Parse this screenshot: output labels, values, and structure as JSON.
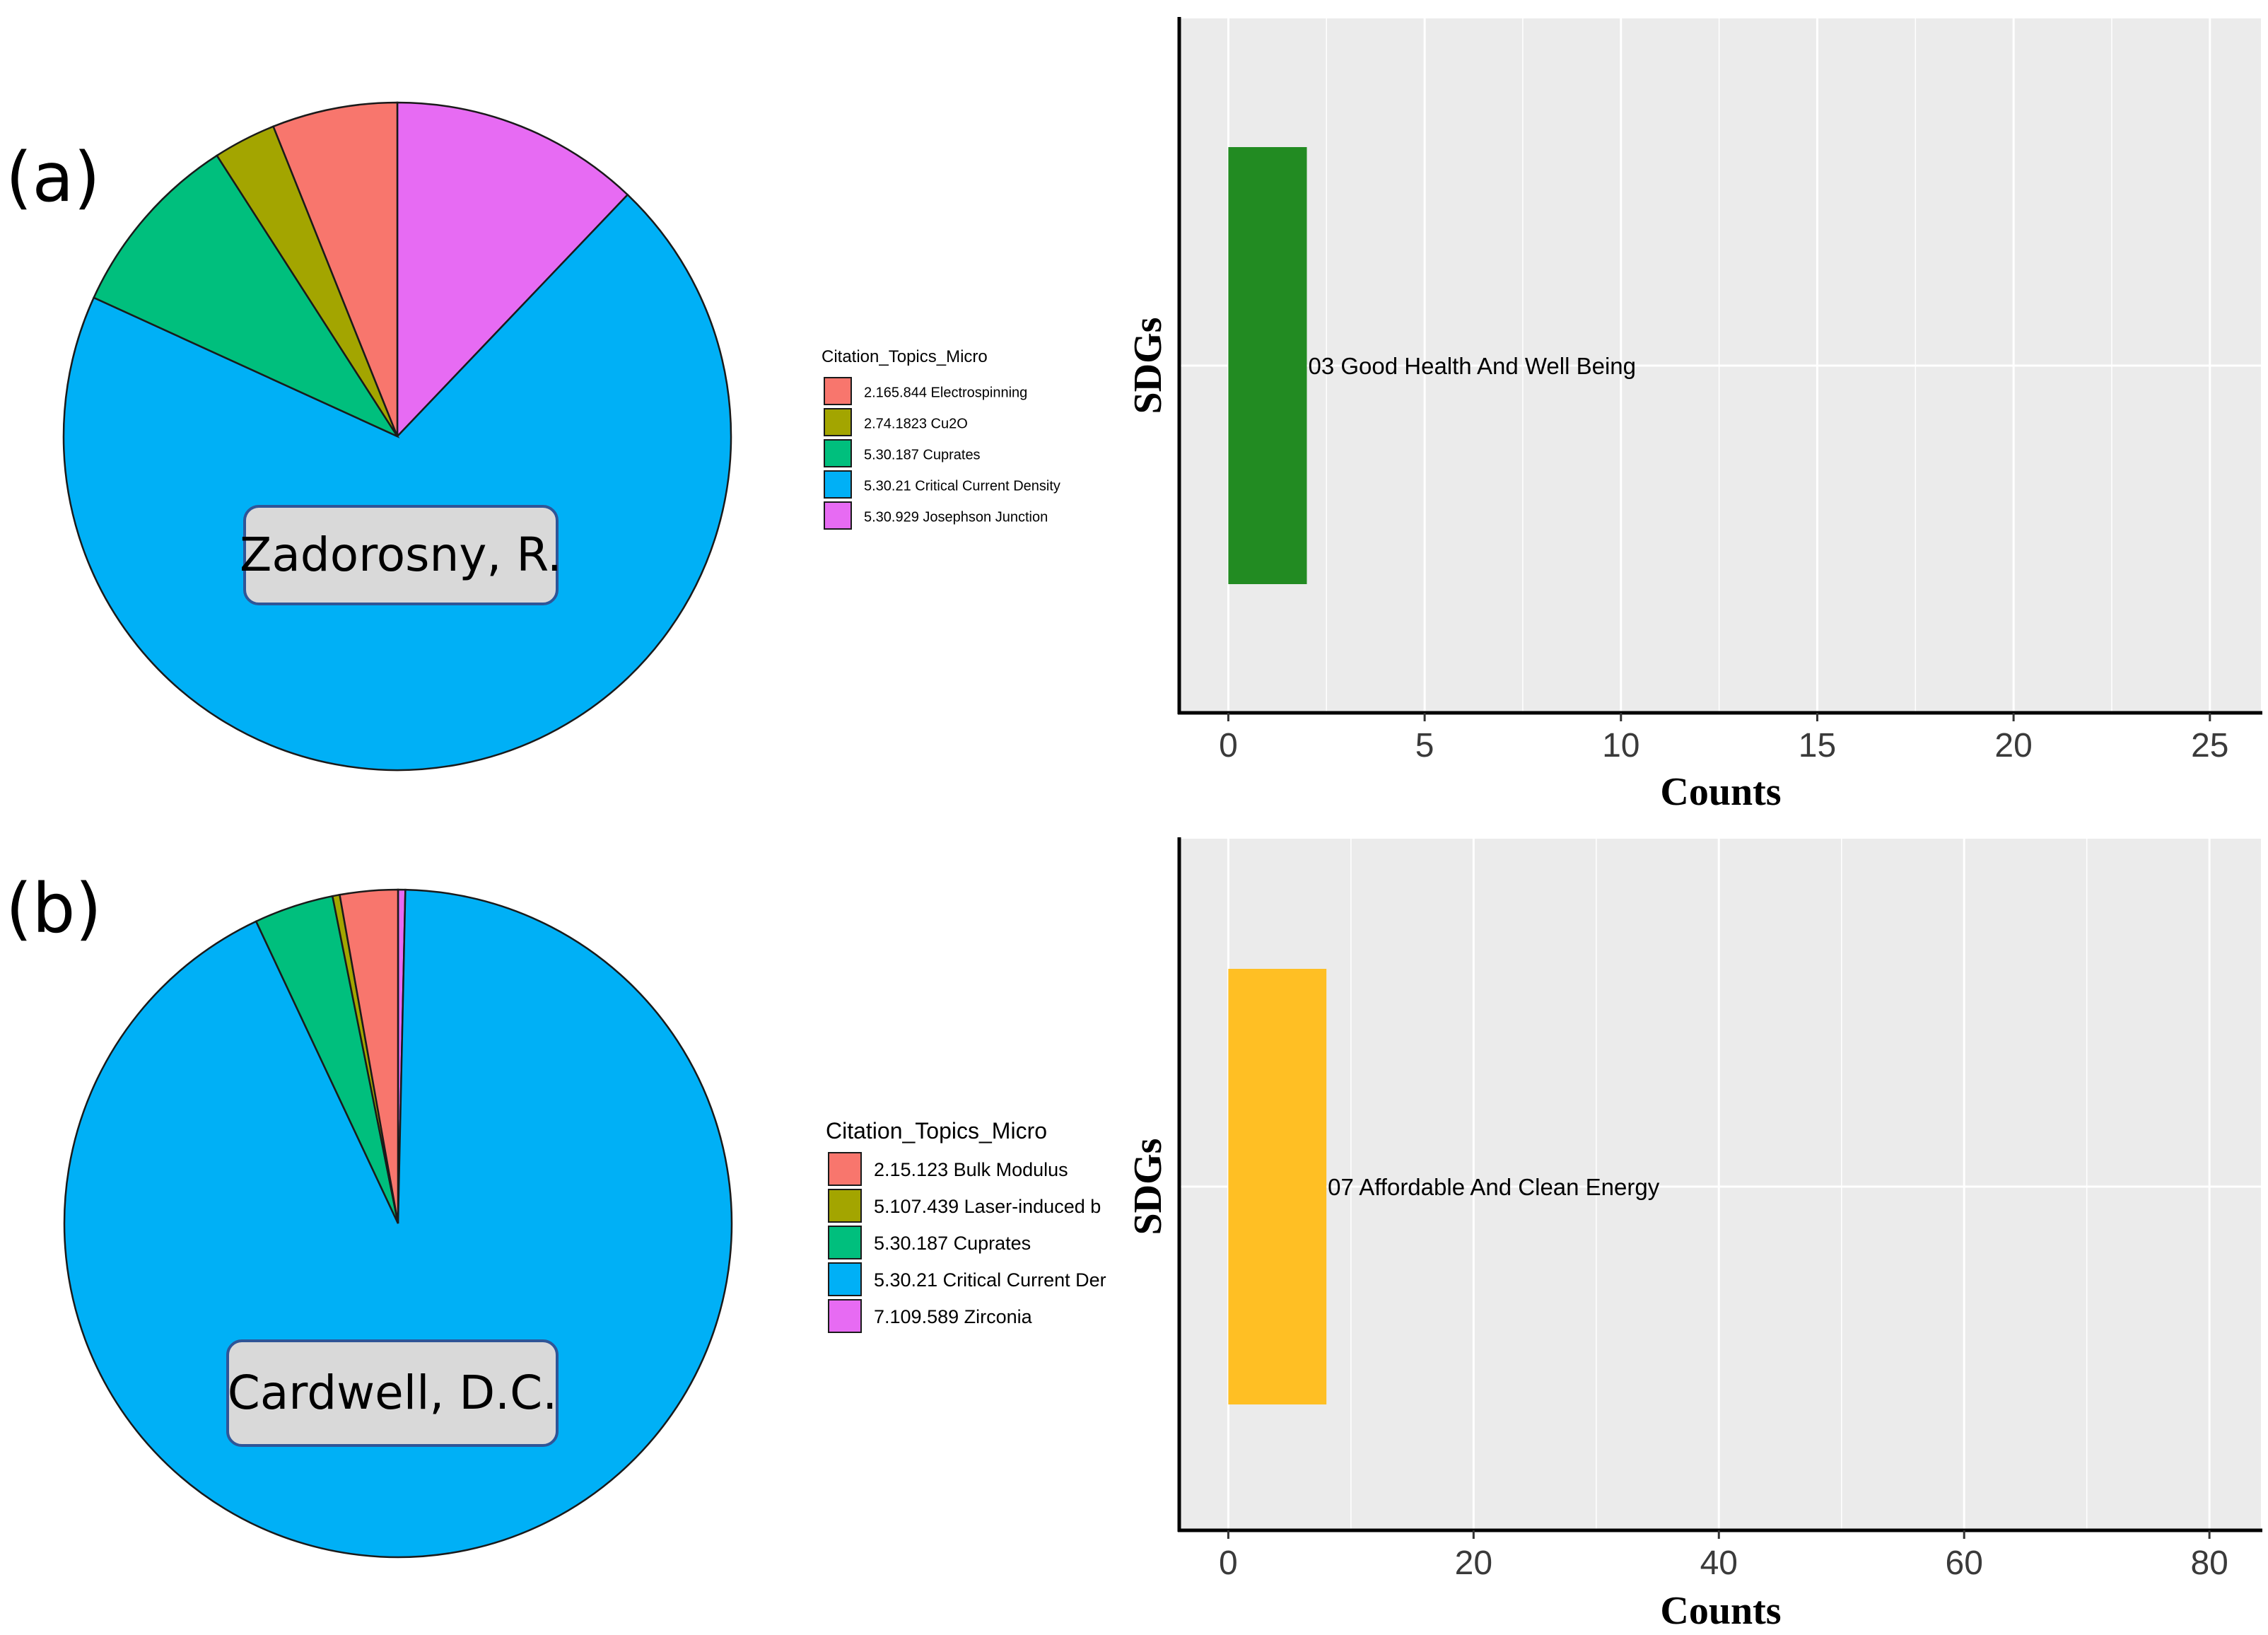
{
  "panels": [
    {
      "id": "a",
      "panel_label": "(a)",
      "author": "Zadorosny, R.",
      "colors": {
        "slices": [
          "#F8766D",
          "#A3A500",
          "#00BF7D",
          "#00B0F6",
          "#E76BF3"
        ],
        "bar": "#228B22"
      }
    },
    {
      "id": "b",
      "panel_label": "(b)",
      "author": "Cardwell, D.C.",
      "colors": {
        "slices": [
          "#F8766D",
          "#A3A500",
          "#00BF7D",
          "#00B0F6",
          "#E76BF3"
        ],
        "bar": "#FFBF24"
      }
    }
  ],
  "chart_data": [
    {
      "type": "pie",
      "panel": "a",
      "legend_title": "Citation_Topics_Micro",
      "categories": [
        "2.165.844 Electrospinning",
        "2.74.1823 Cu2O",
        "5.30.187 Cuprates",
        "5.30.21 Critical Current Density",
        "5.30.929 Josephson Junction"
      ],
      "values": [
        2,
        1,
        3,
        23,
        4
      ]
    },
    {
      "type": "bar",
      "orientation": "horizontal",
      "panel": "a",
      "categories": [
        "03 Good Health And Well Being"
      ],
      "values": [
        2
      ],
      "xlabel": "Counts",
      "ylabel": "SDGs",
      "xlim": [
        -1.25,
        26.3
      ],
      "xticks": [
        "0",
        "5",
        "10",
        "15",
        "20",
        "25"
      ],
      "xtick_values": [
        0,
        5,
        10,
        15,
        20,
        25
      ]
    },
    {
      "type": "pie",
      "panel": "b",
      "legend_title": "Citation_Topics_Micro",
      "categories": [
        "2.15.123 Bulk Modulus",
        "5.107.439 Laser-induced b",
        "5.30.187 Cuprates",
        "5.30.21 Critical Current Der",
        "7.109.589 Zirconia"
      ],
      "values": [
        8,
        1,
        11,
        265,
        1
      ]
    },
    {
      "type": "bar",
      "orientation": "horizontal",
      "panel": "b",
      "categories": [
        "07 Affordable And Clean Energy"
      ],
      "values": [
        8
      ],
      "xlabel": "Counts",
      "ylabel": "SDGs",
      "xlim": [
        -4,
        84.2
      ],
      "xticks": [
        "0",
        "20",
        "40",
        "60",
        "80"
      ],
      "xtick_values": [
        0,
        20,
        40,
        60,
        80
      ]
    }
  ]
}
